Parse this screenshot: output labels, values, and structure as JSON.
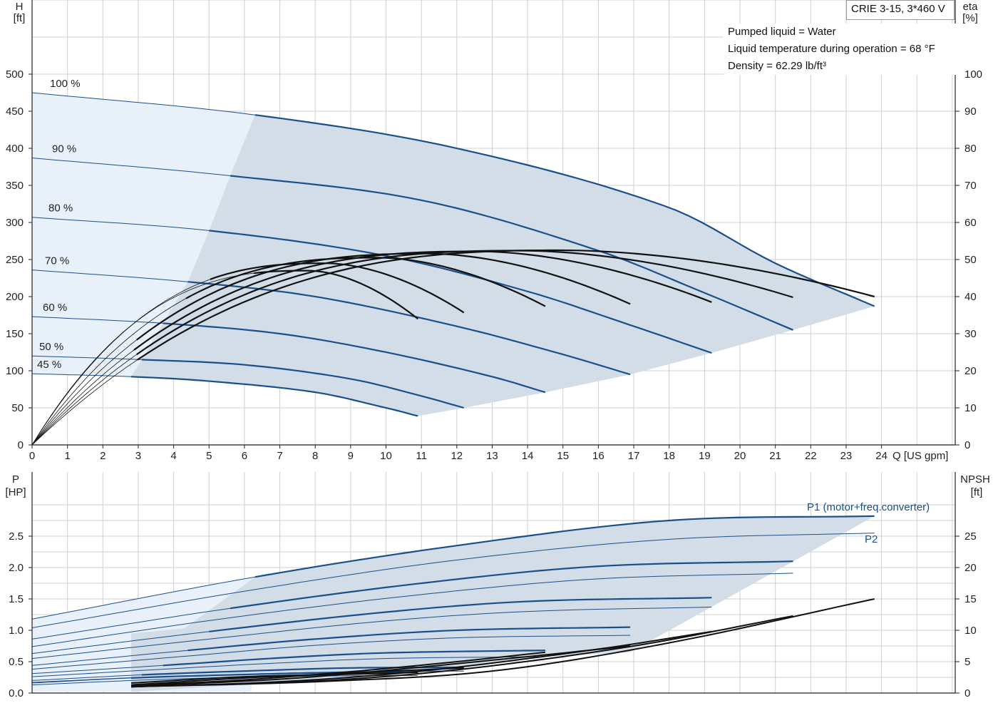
{
  "title": "CRIE 3-15, 3*460 V",
  "info": [
    "Pumped liquid = Water",
    "Liquid temperature during operation = 68 °F",
    "Density = 62.29 lb/ft³"
  ],
  "colors": {
    "grid": "#cfcfcf",
    "area": "#d2dde7",
    "area_light": "#e8f1fa",
    "curve_blue": "#1b4f8a",
    "curve_black": "#111111"
  },
  "chart_data": [
    {
      "type": "line",
      "name_top": "head",
      "y_axis_left": {
        "label": [
          "H",
          "[ft]"
        ],
        "lim": [
          0,
          500
        ],
        "ticks": [
          0,
          50,
          100,
          150,
          200,
          250,
          300,
          350,
          400,
          450,
          500
        ]
      },
      "y_axis_right": {
        "label": [
          "eta",
          "[%]"
        ],
        "lim": [
          0,
          100
        ],
        "ticks": [
          0,
          10,
          20,
          30,
          40,
          50,
          60,
          70,
          80,
          90,
          100
        ]
      },
      "x_axis": {
        "label": "Q [US gpm]",
        "lim": [
          0,
          24
        ],
        "ticks": [
          0,
          1,
          2,
          3,
          4,
          5,
          6,
          7,
          8,
          9,
          10,
          11,
          12,
          13,
          14,
          15,
          16,
          17,
          18,
          19,
          20,
          21,
          22,
          23,
          24
        ]
      },
      "speed_curves": [
        {
          "name": "100 %",
          "qmax": 23.8,
          "x": [
            0,
            6.3,
            12,
            18,
            21,
            23.8
          ],
          "y": [
            475,
            445,
            400,
            320,
            245,
            187
          ]
        },
        {
          "name": "90 %",
          "qmax": 21.5,
          "x": [
            0,
            5.6,
            11,
            16,
            19,
            21.5
          ],
          "y": [
            387,
            363,
            330,
            262,
            205,
            155
          ]
        },
        {
          "name": "80 %",
          "qmax": 19.2,
          "x": [
            0,
            5.0,
            10,
            14,
            17,
            19.2
          ],
          "y": [
            307,
            289,
            255,
            207,
            160,
            124
          ]
        },
        {
          "name": "70 %",
          "qmax": 16.9,
          "x": [
            0,
            4.4,
            8,
            12,
            15,
            16.9
          ],
          "y": [
            236,
            220,
            200,
            160,
            122,
            95
          ]
        },
        {
          "name": "60 %",
          "qmax": 14.5,
          "x": [
            0,
            3.7,
            7,
            10,
            13,
            14.5
          ],
          "y": [
            173,
            164,
            150,
            125,
            92,
            71
          ]
        },
        {
          "name": "50 %",
          "qmax": 12.2,
          "x": [
            0,
            3.1,
            6,
            9,
            11,
            12.2
          ],
          "y": [
            120,
            115,
            108,
            89,
            66,
            50
          ]
        },
        {
          "name": "45 %",
          "qmax": 10.9,
          "x": [
            0,
            2.8,
            5,
            8,
            10,
            10.9
          ],
          "y": [
            96,
            92,
            86,
            71,
            50,
            39
          ]
        }
      ],
      "efficiency_curves": [
        {
          "qstart": 2.8,
          "qend": 23.8,
          "peak_q": 15.0,
          "peak_eta": 52.5,
          "end_eta": 40.0
        },
        {
          "qstart": 2.7,
          "qend": 21.5,
          "peak_q": 13.8,
          "peak_eta": 52.4,
          "end_eta": 39.8
        },
        {
          "qstart": 2.7,
          "qend": 19.2,
          "peak_q": 12.6,
          "peak_eta": 52.2,
          "end_eta": 38.5
        },
        {
          "qstart": 2.8,
          "qend": 16.9,
          "peak_q": 11.2,
          "peak_eta": 51.6,
          "end_eta": 38.0
        },
        {
          "qstart": 4.3,
          "qend": 14.5,
          "peak_q": 9.8,
          "peak_eta": 50.5,
          "end_eta": 37.4
        },
        {
          "qstart": 5.0,
          "qend": 12.2,
          "peak_q": 8.3,
          "peak_eta": 49.0,
          "end_eta": 35.7
        },
        {
          "qstart": 6.2,
          "qend": 10.9,
          "peak_q": 7.8,
          "peak_eta": 47.0,
          "end_eta": 34.0
        }
      ]
    },
    {
      "type": "line",
      "name_bottom": "power",
      "y_axis_left": {
        "label": [
          "P",
          "[HP]"
        ],
        "lim": [
          0,
          3.0
        ],
        "ticks": [
          0.0,
          0.5,
          1.0,
          1.5,
          2.0,
          2.5
        ]
      },
      "y_axis_right": {
        "label": [
          "NPSH",
          "[ft]"
        ],
        "lim": [
          0,
          30
        ],
        "ticks": [
          0,
          5,
          10,
          15,
          20,
          25
        ]
      },
      "series_labels": {
        "p1": "P1 (motor+freq.converter)",
        "p2": "P2"
      },
      "p1_curves": [
        {
          "qmax": 23.8,
          "x": [
            0,
            6.3,
            12,
            18,
            23.8
          ],
          "y": [
            1.18,
            1.85,
            2.35,
            2.75,
            2.82
          ]
        },
        {
          "qmax": 21.5,
          "x": [
            0,
            5.6,
            11,
            16,
            21.5
          ],
          "y": [
            0.86,
            1.35,
            1.75,
            2.02,
            2.1
          ]
        },
        {
          "qmax": 19.2,
          "x": [
            0,
            5.0,
            10,
            14,
            19.2
          ],
          "y": [
            0.63,
            0.98,
            1.29,
            1.46,
            1.52
          ]
        },
        {
          "qmax": 16.9,
          "x": [
            0,
            4.4,
            8,
            12,
            16.9
          ],
          "y": [
            0.44,
            0.68,
            0.86,
            1.0,
            1.05
          ]
        },
        {
          "qmax": 14.5,
          "x": [
            0,
            3.7,
            7,
            10,
            14.5
          ],
          "y": [
            0.31,
            0.44,
            0.56,
            0.64,
            0.68
          ]
        },
        {
          "qmax": 12.2,
          "x": [
            0,
            3.1,
            6,
            9,
            12.2
          ],
          "y": [
            0.2,
            0.29,
            0.35,
            0.4,
            0.41
          ]
        },
        {
          "qmax": 10.9,
          "x": [
            0,
            2.8,
            5,
            8,
            10.9
          ],
          "y": [
            0.16,
            0.24,
            0.28,
            0.32,
            0.33
          ]
        }
      ],
      "p2_curves": [
        {
          "qmax": 23.8,
          "x": [
            0,
            6.3,
            12,
            18,
            23.8
          ],
          "y": [
            1.04,
            1.65,
            2.12,
            2.45,
            2.55
          ]
        },
        {
          "qmax": 21.5,
          "x": [
            0,
            5.6,
            11,
            16,
            21.5
          ],
          "y": [
            0.74,
            1.2,
            1.57,
            1.82,
            1.91
          ]
        },
        {
          "qmax": 19.2,
          "x": [
            0,
            5.0,
            10,
            14,
            19.2
          ],
          "y": [
            0.55,
            0.86,
            1.15,
            1.3,
            1.37
          ]
        },
        {
          "qmax": 16.9,
          "x": [
            0,
            4.4,
            8,
            12,
            16.9
          ],
          "y": [
            0.38,
            0.59,
            0.76,
            0.88,
            0.92
          ]
        },
        {
          "qmax": 14.5,
          "x": [
            0,
            3.7,
            7,
            10,
            14.5
          ],
          "y": [
            0.26,
            0.38,
            0.48,
            0.55,
            0.58
          ]
        },
        {
          "qmax": 12.2,
          "x": [
            0,
            3.1,
            6,
            9,
            12.2
          ],
          "y": [
            0.17,
            0.25,
            0.3,
            0.34,
            0.35
          ]
        },
        {
          "qmax": 10.9,
          "x": [
            0,
            2.8,
            5,
            8,
            10.9
          ],
          "y": [
            0.13,
            0.2,
            0.24,
            0.27,
            0.28
          ]
        }
      ],
      "npsh_curves": [
        {
          "qmax": 23.8,
          "x": [
            2.8,
            8,
            13,
            18,
            23.8
          ],
          "y": [
            1.0,
            1.8,
            3.5,
            8.0,
            15.0
          ]
        },
        {
          "qmax": 21.5,
          "x": [
            2.8,
            8,
            12,
            17,
            21.5
          ],
          "y": [
            1.0,
            1.9,
            3.7,
            7.5,
            12.3
          ]
        },
        {
          "qmax": 19.2,
          "x": [
            2.8,
            7,
            11,
            16,
            19.2
          ],
          "y": [
            1.0,
            1.8,
            3.5,
            7.0,
            9.8
          ]
        },
        {
          "qmax": 16.9,
          "x": [
            2.8,
            7,
            10,
            14,
            16.9
          ],
          "y": [
            1.1,
            2.2,
            3.6,
            5.8,
            7.5
          ]
        },
        {
          "qmax": 14.5,
          "x": [
            2.8,
            6,
            9,
            12,
            14.5
          ],
          "y": [
            1.2,
            2.1,
            3.4,
            5.0,
            6.5
          ]
        },
        {
          "qmax": 12.2,
          "x": [
            2.8,
            6,
            9,
            12.2
          ],
          "y": [
            1.3,
            2.4,
            3.2,
            4.0
          ]
        },
        {
          "qmax": 10.9,
          "x": [
            2.8,
            6,
            9,
            10.9
          ],
          "y": [
            1.6,
            2.6,
            3.0,
            3.3
          ]
        }
      ]
    }
  ]
}
